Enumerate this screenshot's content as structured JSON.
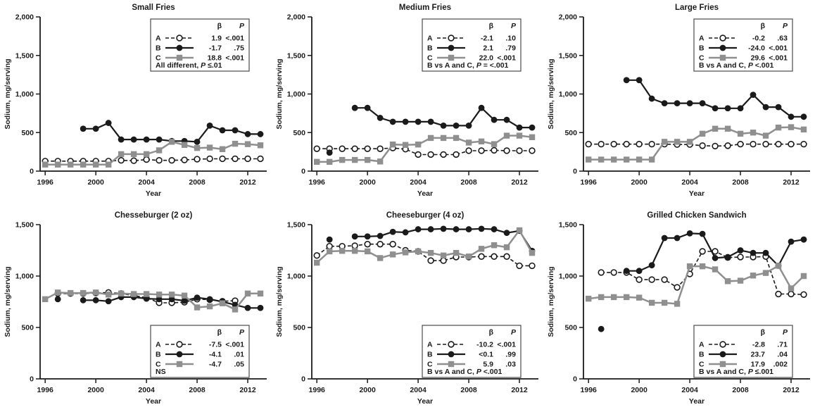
{
  "figure": {
    "ylabel": "Sodium, mg/serving",
    "xlabel": "Year",
    "colors": {
      "black_series": "#1a1a1a",
      "gray_series": "#8f8f8f",
      "open_marker_fill": "#ffffff",
      "legend_border": "#4a4a4a",
      "background": "#ffffff"
    },
    "legend_headers": {
      "beta": "β",
      "p": "P"
    }
  },
  "chart_data": [
    {
      "type": "line",
      "title": "Small Fries",
      "xlabel": "Year",
      "ylabel": "Sodium, mg/serving",
      "xlim": [
        1995.6,
        2013.5
      ],
      "ylim": [
        0,
        2000
      ],
      "xticks": [
        1996,
        2000,
        2004,
        2008,
        2012
      ],
      "yticks": [
        0,
        500,
        1000,
        1500,
        2000
      ],
      "x": [
        1996,
        1997,
        1998,
        1999,
        2000,
        2001,
        2002,
        2003,
        2004,
        2005,
        2006,
        2007,
        2008,
        2009,
        2010,
        2011,
        2012,
        2013
      ],
      "legend_position": "top-right",
      "note": "All different, P ≤.01",
      "series": [
        {
          "name": "A",
          "style": "dashed-open-circle",
          "beta": "1.9",
          "p": "<.001",
          "values": [
            130,
            130,
            130,
            130,
            130,
            130,
            140,
            135,
            150,
            140,
            140,
            145,
            155,
            160,
            160,
            160,
            160,
            160
          ]
        },
        {
          "name": "B",
          "style": "solid-filled-circle",
          "beta": "-1.7",
          "p": ".75",
          "values": [
            null,
            null,
            null,
            550,
            550,
            625,
            410,
            410,
            410,
            410,
            390,
            390,
            380,
            590,
            530,
            530,
            480,
            480
          ]
        },
        {
          "name": "C",
          "style": "solid-filled-square",
          "beta": "18.8",
          "p": "<.001",
          "values": [
            85,
            85,
            85,
            85,
            85,
            85,
            220,
            220,
            220,
            270,
            380,
            340,
            300,
            305,
            285,
            355,
            350,
            335
          ]
        }
      ]
    },
    {
      "type": "line",
      "title": "Medium Fries",
      "xlabel": "Year",
      "ylabel": "Sodium, mg/serving",
      "xlim": [
        1995.6,
        2013.5
      ],
      "ylim": [
        0,
        2000
      ],
      "xticks": [
        1996,
        2000,
        2004,
        2008,
        2012
      ],
      "yticks": [
        0,
        500,
        1000,
        1500,
        2000
      ],
      "x": [
        1996,
        1997,
        1998,
        1999,
        2000,
        2001,
        2002,
        2003,
        2004,
        2005,
        2006,
        2007,
        2008,
        2009,
        2010,
        2011,
        2012,
        2013
      ],
      "legend_position": "top-right",
      "note": "B vs A and C, P = <.001",
      "series": [
        {
          "name": "A",
          "style": "dashed-open-circle",
          "beta": "-2.1",
          "p": ".10",
          "values": [
            290,
            290,
            290,
            290,
            290,
            290,
            300,
            285,
            215,
            215,
            215,
            215,
            265,
            265,
            270,
            265,
            265,
            265
          ]
        },
        {
          "name": "B",
          "style": "solid-filled-circle",
          "beta": "2.1",
          "p": ".79",
          "values": [
            null,
            240,
            null,
            820,
            820,
            690,
            640,
            640,
            640,
            640,
            590,
            590,
            590,
            820,
            665,
            665,
            565,
            565
          ]
        },
        {
          "name": "C",
          "style": "solid-filled-square",
          "beta": "22.0",
          "p": "<.001",
          "values": [
            120,
            120,
            145,
            145,
            145,
            125,
            345,
            340,
            345,
            430,
            430,
            430,
            370,
            385,
            350,
            460,
            460,
            440
          ]
        }
      ]
    },
    {
      "type": "line",
      "title": "Large Fries",
      "xlabel": "Year",
      "ylabel": "Sodium, mg/serving",
      "xlim": [
        1995.6,
        2013.5
      ],
      "ylim": [
        0,
        2000
      ],
      "xticks": [
        1996,
        2000,
        2004,
        2008,
        2012
      ],
      "yticks": [
        0,
        500,
        1000,
        1500,
        2000
      ],
      "x": [
        1996,
        1997,
        1998,
        1999,
        2000,
        2001,
        2002,
        2003,
        2004,
        2005,
        2006,
        2007,
        2008,
        2009,
        2010,
        2011,
        2012,
        2013
      ],
      "legend_position": "top-right",
      "note": "B vs A and C, P <.001",
      "series": [
        {
          "name": "A",
          "style": "dashed-open-circle",
          "beta": "-0.2",
          "p": ".63",
          "values": [
            350,
            350,
            350,
            350,
            350,
            350,
            350,
            345,
            345,
            330,
            325,
            330,
            350,
            350,
            350,
            350,
            350,
            350
          ]
        },
        {
          "name": "B",
          "style": "solid-filled-circle",
          "beta": "-24.0",
          "p": "<.001",
          "values": [
            null,
            null,
            null,
            1180,
            1180,
            940,
            880,
            880,
            880,
            880,
            815,
            815,
            815,
            990,
            830,
            830,
            705,
            705
          ]
        },
        {
          "name": "C",
          "style": "solid-filled-square",
          "beta": "29.6",
          "p": "<.001",
          "values": [
            150,
            150,
            150,
            150,
            150,
            150,
            380,
            380,
            380,
            485,
            550,
            550,
            485,
            500,
            460,
            565,
            570,
            540
          ]
        }
      ]
    },
    {
      "type": "line",
      "title": "Chesseburger (2 oz)",
      "xlabel": "Year",
      "ylabel": "Sodium, mg/serving",
      "xlim": [
        1995.6,
        2013.5
      ],
      "ylim": [
        0,
        1500
      ],
      "xticks": [
        1996,
        2000,
        2004,
        2008,
        2012
      ],
      "yticks": [
        0,
        500,
        1000,
        1500
      ],
      "x": [
        1996,
        1997,
        1998,
        1999,
        2000,
        2001,
        2002,
        2003,
        2004,
        2005,
        2006,
        2007,
        2008,
        2009,
        2010,
        2011,
        2012,
        2013
      ],
      "legend_position": "bottom-right",
      "note": "NS",
      "series": [
        {
          "name": "A",
          "style": "dashed-open-circle",
          "beta": "-7.5",
          "p": "<.001",
          "values": [
            null,
            830,
            830,
            830,
            835,
            840,
            830,
            810,
            790,
            740,
            740,
            745,
            775,
            770,
            755,
            760,
            null,
            null
          ]
        },
        {
          "name": "B",
          "style": "solid-filled-circle",
          "beta": "-4.1",
          "p": ".01",
          "values": [
            null,
            775,
            null,
            765,
            765,
            755,
            795,
            795,
            780,
            775,
            775,
            760,
            790,
            775,
            750,
            720,
            690,
            690
          ]
        },
        {
          "name": "C",
          "style": "solid-filled-square",
          "beta": "-4.7",
          "p": ".05",
          "values": [
            775,
            840,
            835,
            835,
            840,
            820,
            830,
            825,
            825,
            820,
            820,
            810,
            695,
            705,
            735,
            675,
            830,
            830
          ]
        }
      ]
    },
    {
      "type": "line",
      "title": "Cheeseburger (4 oz)",
      "xlabel": "Year",
      "ylabel": "Sodium, mg/serving",
      "xlim": [
        1995.6,
        2013.5
      ],
      "ylim": [
        0,
        1500
      ],
      "xticks": [
        1996,
        2000,
        2004,
        2008,
        2012
      ],
      "yticks": [
        0,
        500,
        1000,
        1500
      ],
      "x": [
        1996,
        1997,
        1998,
        1999,
        2000,
        2001,
        2002,
        2003,
        2004,
        2005,
        2006,
        2007,
        2008,
        2009,
        2010,
        2011,
        2012,
        2013
      ],
      "legend_position": "bottom-right",
      "note": "B vs A and C, P <.001",
      "series": [
        {
          "name": "A",
          "style": "dashed-open-circle",
          "beta": "-10.2",
          "p": "<.001",
          "values": [
            1200,
            1290,
            1290,
            1295,
            1310,
            1310,
            1310,
            1250,
            1240,
            1150,
            1150,
            1185,
            1185,
            1190,
            1190,
            1190,
            1100,
            1100
          ]
        },
        {
          "name": "B",
          "style": "solid-filled-circle",
          "beta": "<0.1",
          "p": ".99",
          "values": [
            null,
            1355,
            null,
            1385,
            1385,
            1390,
            1430,
            1425,
            1455,
            1455,
            1460,
            1455,
            1455,
            1460,
            1455,
            1420,
            1440,
            1245
          ]
        },
        {
          "name": "C",
          "style": "solid-filled-square",
          "beta": "5.9",
          "p": ".03",
          "values": [
            1130,
            1240,
            1245,
            1245,
            1240,
            1175,
            1210,
            1230,
            1240,
            1225,
            1200,
            1225,
            1190,
            1265,
            1300,
            1280,
            1445,
            1225
          ]
        }
      ]
    },
    {
      "type": "line",
      "title": "Grilled Chicken Sandwich",
      "xlabel": "Year",
      "ylabel": "Sodium, mg/serving",
      "xlim": [
        1995.6,
        2013.5
      ],
      "ylim": [
        0,
        1500
      ],
      "xticks": [
        1996,
        2000,
        2004,
        2008,
        2012
      ],
      "yticks": [
        0,
        500,
        1000,
        1500
      ],
      "x": [
        1996,
        1997,
        1998,
        1999,
        2000,
        2001,
        2002,
        2003,
        2004,
        2005,
        2006,
        2007,
        2008,
        2009,
        2010,
        2011,
        2012,
        2013
      ],
      "legend_position": "bottom-right",
      "note": "B vs A and C, P ≤.001",
      "series": [
        {
          "name": "A",
          "style": "dashed-open-circle",
          "beta": "-2.8",
          "p": ".71",
          "values": [
            null,
            1035,
            1035,
            1035,
            965,
            965,
            965,
            890,
            1020,
            1240,
            1240,
            1180,
            1185,
            1185,
            1190,
            825,
            825,
            820
          ]
        },
        {
          "name": "B",
          "style": "solid-filled-circle",
          "beta": "23.7",
          "p": ".04",
          "values": [
            null,
            485,
            null,
            1050,
            1050,
            1105,
            1370,
            1370,
            1415,
            1410,
            1175,
            1185,
            1250,
            1225,
            1225,
            1100,
            1335,
            1355
          ]
        },
        {
          "name": "C",
          "style": "solid-filled-square",
          "beta": "17.9",
          "p": ".002",
          "values": [
            780,
            795,
            795,
            795,
            790,
            740,
            740,
            730,
            1095,
            1095,
            1065,
            950,
            955,
            1005,
            1030,
            1100,
            880,
            1000
          ]
        }
      ]
    }
  ]
}
